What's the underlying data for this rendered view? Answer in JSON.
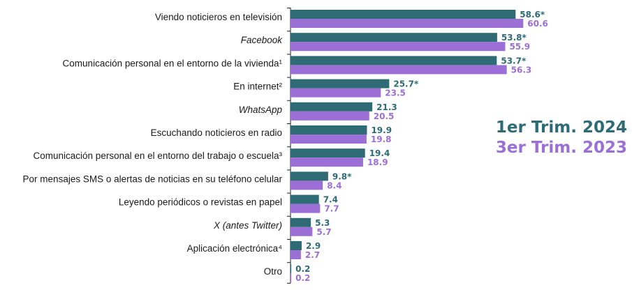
{
  "chart_data": {
    "type": "bar",
    "orientation": "horizontal",
    "title": "",
    "xlabel": "",
    "ylabel": "",
    "xlim": [
      0,
      62
    ],
    "grid": false,
    "legend_position": "right",
    "categories": [
      "Viendo noticieros en televisión",
      "Facebook",
      "Comunicación personal en el entorno de la vivienda¹",
      "En internet²",
      "WhatsApp",
      "Escuchando noticieros en radio",
      "Comunicación personal en el entorno del trabajo o escuela³",
      "Por mensajes SMS o alertas de noticias en su teléfono celular",
      "Leyendo periódicos o revistas en papel",
      "X (antes Twitter)",
      "Aplicación electrónica⁴",
      "Otro"
    ],
    "italic_categories": [
      1,
      4,
      9
    ],
    "series": [
      {
        "name": "1er Trim. 2024",
        "color": "#2e6b75",
        "values": [
          58.6,
          53.8,
          53.7,
          25.7,
          21.3,
          19.9,
          19.4,
          9.8,
          7.4,
          5.3,
          2.9,
          0.2
        ],
        "labels": [
          "58.6*",
          "53.8*",
          "53.7*",
          "25.7*",
          "21.3",
          "19.9",
          "19.4",
          "9.8*",
          "7.4",
          "5.3",
          "2.9",
          "0.2"
        ]
      },
      {
        "name": "3er Trim. 2023",
        "color": "#9b6fd6",
        "values": [
          60.6,
          55.9,
          56.3,
          23.5,
          20.5,
          19.8,
          18.9,
          8.4,
          7.7,
          5.7,
          2.7,
          0.2
        ],
        "labels": [
          "60.6",
          "55.9",
          "56.3",
          "23.5",
          "20.5",
          "19.8",
          "18.9",
          "8.4",
          "7.7",
          "5.7",
          "2.7",
          "0.2"
        ]
      }
    ]
  }
}
